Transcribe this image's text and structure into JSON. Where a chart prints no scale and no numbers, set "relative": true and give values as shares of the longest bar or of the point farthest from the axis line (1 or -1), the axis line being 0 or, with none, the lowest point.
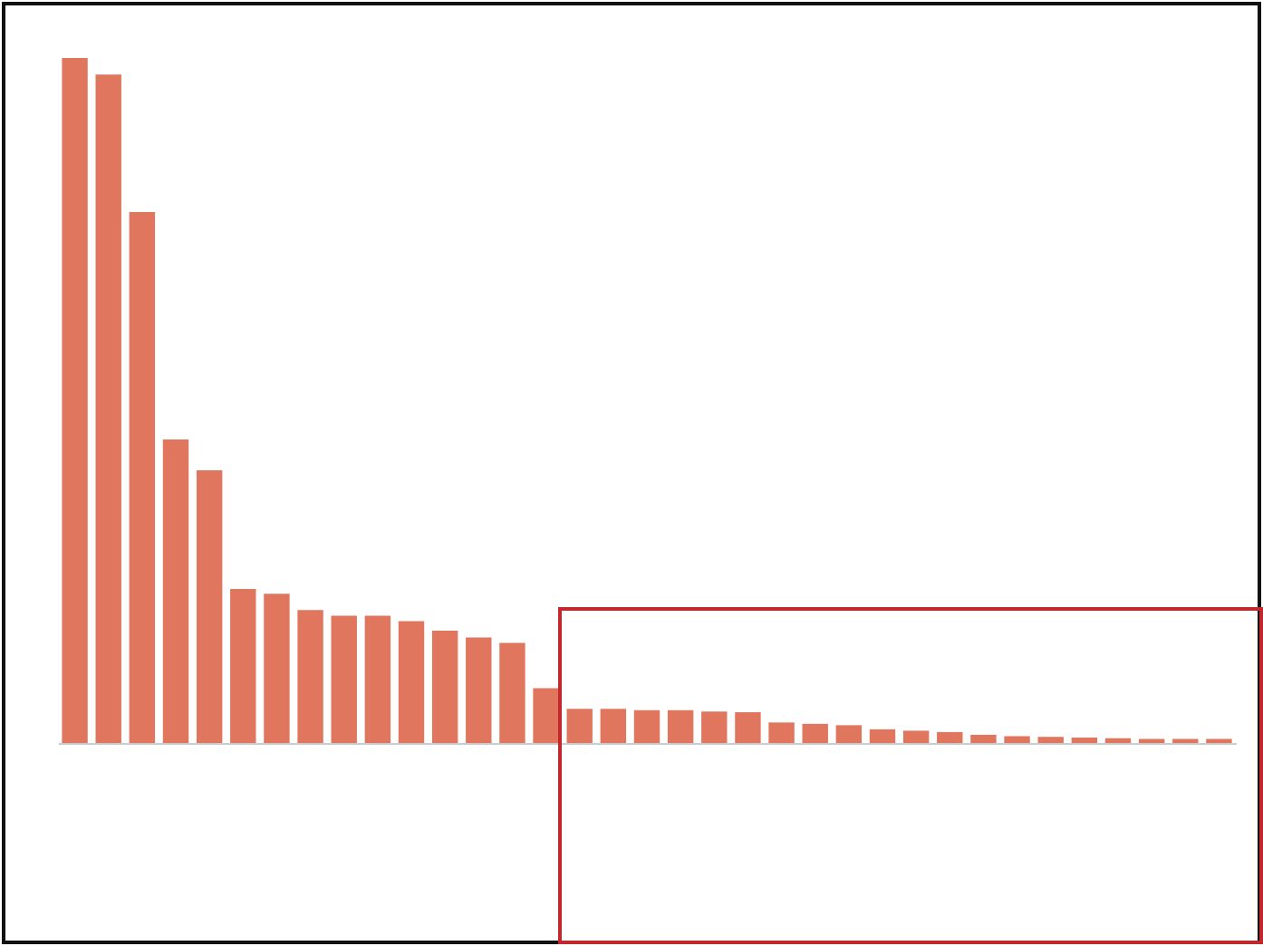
{
  "chart_data": {
    "type": "bar",
    "relative": true,
    "color": "#e0765e",
    "categories": [
      null,
      null,
      null,
      null,
      null,
      null,
      null,
      null,
      null,
      null,
      null,
      null,
      null,
      null,
      null,
      null,
      null,
      null,
      null,
      null,
      null,
      null,
      null,
      null,
      null,
      null,
      null,
      null,
      null,
      null,
      null,
      null,
      null,
      null,
      null
    ],
    "values": [
      1,
      0.976,
      0.775,
      0.443,
      0.398,
      0.225,
      0.218,
      0.194,
      0.186,
      0.186,
      0.178,
      0.164,
      0.154,
      0.146,
      0.08,
      0.05,
      0.05,
      0.048,
      0.048,
      0.046,
      0.045,
      0.03,
      0.028,
      0.026,
      0.02,
      0.018,
      0.016,
      0.012,
      0.01,
      0.009,
      0.008,
      0.007,
      0.006,
      0.006,
      0.006
    ]
  }
}
